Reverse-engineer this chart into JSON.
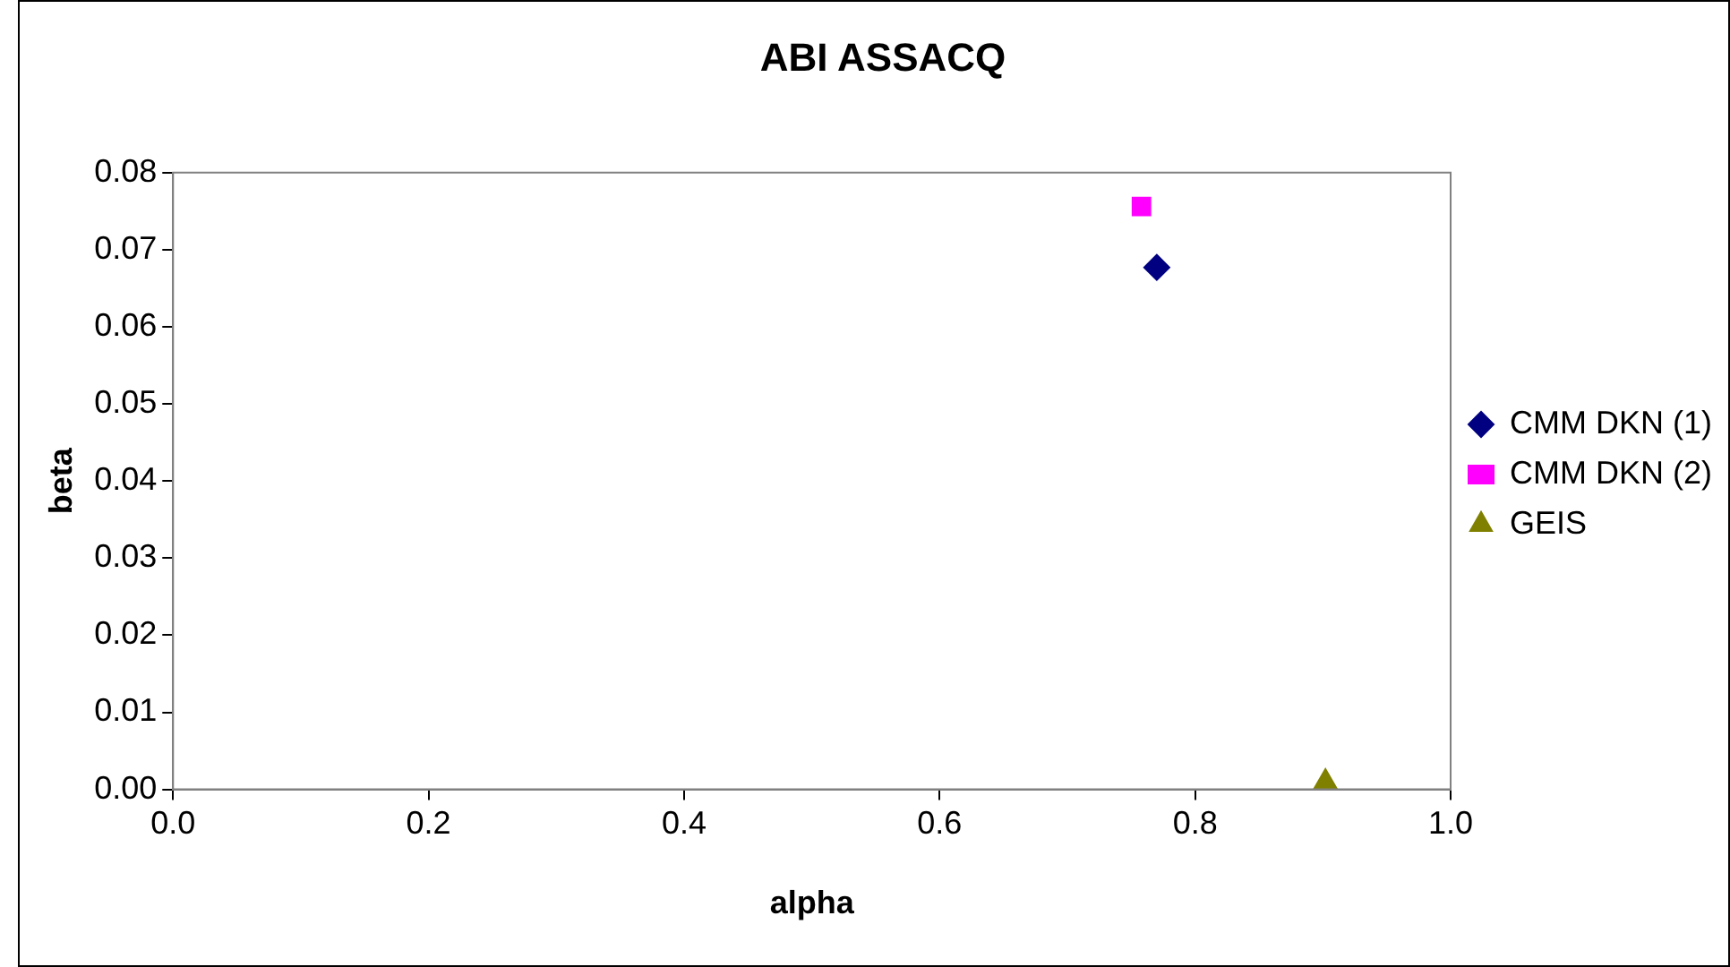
{
  "chart_data": {
    "type": "scatter",
    "title": "ABI ASSACQ",
    "xlabel": "alpha",
    "ylabel": "beta",
    "xlim": [
      0,
      1
    ],
    "xticks": [
      {
        "value": 0,
        "label": "0.0"
      },
      {
        "value": 0.2,
        "label": "0.2"
      },
      {
        "value": 0.4,
        "label": "0.4"
      },
      {
        "value": 0.6,
        "label": "0.6"
      },
      {
        "value": 0.8,
        "label": "0.8"
      },
      {
        "value": 1,
        "label": "1.0"
      }
    ],
    "ylim": [
      0,
      0.08
    ],
    "yticks": [
      {
        "value": 0,
        "label": "0.00"
      },
      {
        "value": 0.01,
        "label": "0.01"
      },
      {
        "value": 0.02,
        "label": "0.02"
      },
      {
        "value": 0.03,
        "label": "0.03"
      },
      {
        "value": 0.04,
        "label": "0.04"
      },
      {
        "value": 0.05,
        "label": "0.05"
      },
      {
        "value": 0.06,
        "label": "0.06"
      },
      {
        "value": 0.07,
        "label": "0.07"
      },
      {
        "value": 0.08,
        "label": "0.08"
      }
    ],
    "grid": false,
    "legend": "right",
    "series": [
      {
        "name": "CMM DKN (1)",
        "color": "#000080",
        "marker": "diamond",
        "x": [
          0.77
        ],
        "values": [
          0.0677
        ]
      },
      {
        "name": "CMM DKN (2)",
        "color": "#ff00ff",
        "marker": "square",
        "x": [
          0.758
        ],
        "values": [
          0.0756
        ]
      },
      {
        "name": "GEIS",
        "color": "#808000",
        "marker": "triangle",
        "x": [
          0.902
        ],
        "values": [
          0.001
        ]
      }
    ]
  }
}
